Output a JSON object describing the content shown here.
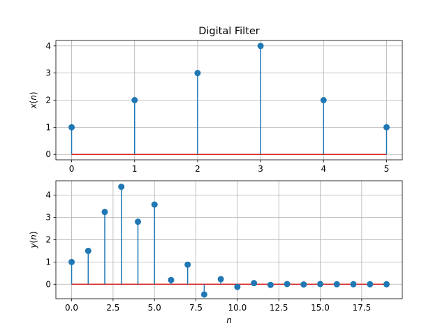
{
  "chart_data": [
    {
      "type": "stem",
      "title": "Digital Filter",
      "xlabel": "",
      "ylabel": "x(n)",
      "ylabel_var": "n",
      "xlim": [
        -0.25,
        5.25
      ],
      "ylim": [
        -0.2,
        4.2
      ],
      "xticks": [
        "0",
        "1",
        "2",
        "3",
        "4",
        "5"
      ],
      "yticks": [
        "0",
        "1",
        "2",
        "3",
        "4"
      ],
      "x": [
        0,
        1,
        2,
        3,
        4,
        5
      ],
      "values": [
        1,
        2,
        3,
        4,
        2,
        1
      ],
      "grid": true,
      "colors": {
        "stem": "#1f77b4",
        "baseline": "#d62728"
      }
    },
    {
      "type": "stem",
      "title": "",
      "xlabel": "n",
      "ylabel": "y(n)",
      "ylabel_var": "n",
      "xlim": [
        -0.95,
        19.95
      ],
      "ylim": [
        -0.65,
        4.65
      ],
      "xticks": [
        "0.0",
        "2.5",
        "5.0",
        "7.5",
        "10.0",
        "12.5",
        "15.0",
        "17.5"
      ],
      "xtick_values": [
        0,
        2.5,
        5,
        7.5,
        10,
        12.5,
        15,
        17.5
      ],
      "yticks": [
        "0",
        "1",
        "2",
        "3",
        "4"
      ],
      "x": [
        0,
        1,
        2,
        3,
        4,
        5,
        6,
        7,
        8,
        9,
        10,
        11,
        12,
        13,
        14,
        15,
        16,
        17,
        18,
        19
      ],
      "values": [
        1.0,
        1.5,
        3.25,
        4.38,
        2.81,
        3.58,
        0.19,
        0.88,
        -0.46,
        0.23,
        -0.12,
        0.05,
        -0.03,
        0.01,
        -0.01,
        0.01,
        0.0,
        0.0,
        0.0,
        0.0
      ],
      "grid": true,
      "colors": {
        "stem": "#1f77b4",
        "baseline": "#d62728"
      }
    }
  ]
}
